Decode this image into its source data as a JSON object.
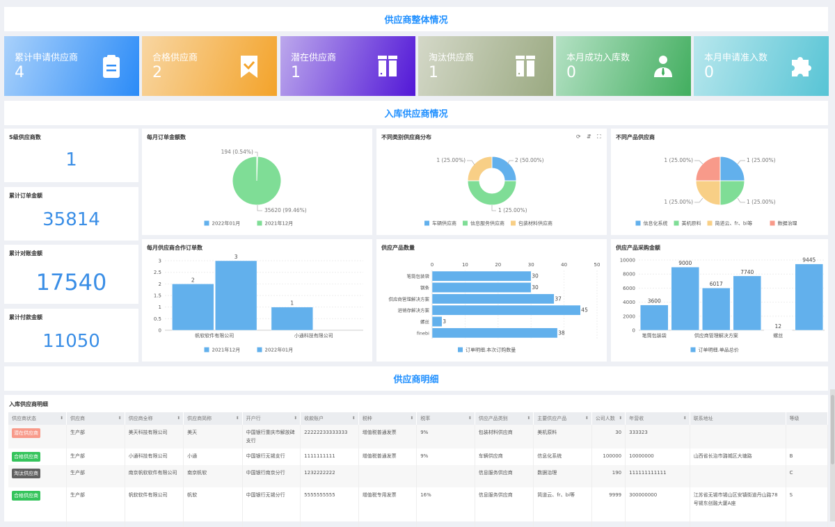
{
  "sections": {
    "overview": "供应商整体情况",
    "inbound": "入库供应商情况",
    "detail": "供应商明细"
  },
  "cards": [
    {
      "label": "累计申请供应商",
      "value": "4",
      "icon": "clipboard-icon",
      "from": "#a9d1fb",
      "to": "#2b8bf7"
    },
    {
      "label": "合格供应商",
      "value": "2",
      "icon": "bookmark-check-icon",
      "from": "#f8d6a2",
      "to": "#f3a32a"
    },
    {
      "label": "潜在供应商",
      "value": "1",
      "icon": "columns-icon",
      "from": "#bca8ec",
      "to": "#5217d7"
    },
    {
      "label": "淘汰供应商",
      "value": "1",
      "icon": "columns-icon",
      "from": "#d4d8c8",
      "to": "#9aa981"
    },
    {
      "label": "本月成功入库数",
      "value": "0",
      "icon": "user-tie-icon",
      "from": "#b4e1c4",
      "to": "#42ae5f"
    },
    {
      "label": "本月申请准入数",
      "value": "0",
      "icon": "puzzle-icon",
      "from": "#b8e7ed",
      "to": "#57c4d5"
    }
  ],
  "kpis": [
    {
      "label": "S级供应商数",
      "value": "1"
    },
    {
      "label": "累计订单金额",
      "value": "35814"
    },
    {
      "label": "累计对账金额",
      "value": "17540"
    },
    {
      "label": "累计付款金额",
      "value": "11050"
    }
  ],
  "chart_data": [
    {
      "id": "monthly-amount",
      "type": "pie",
      "title": "每月订单金额数",
      "categories": [
        "2022年01月",
        "2021年12月"
      ],
      "values": [
        194,
        35620
      ],
      "labels": [
        "194 (0.54%)",
        "35620 (99.46%)"
      ],
      "colors": [
        "#62b0ec",
        "#7fdd96"
      ],
      "legend": "bottom"
    },
    {
      "id": "category-dist",
      "type": "pie",
      "donut": true,
      "title": "不同类别供应商分布",
      "categories": [
        "车辆供应商",
        "信息服务供应商",
        "包装材料供应商"
      ],
      "values": [
        1,
        2,
        1
      ],
      "labels": [
        "1 (25.00%)",
        "2 (50.00%)",
        "1 (25.00%)"
      ],
      "colors": [
        "#62b0ec",
        "#7fdd96",
        "#f8cf86"
      ],
      "legend": "bottom",
      "toolbar": [
        "refresh-icon",
        "sort-icon",
        "fullscreen-icon"
      ]
    },
    {
      "id": "product-suppliers",
      "type": "pie",
      "title": "不同产品供应商",
      "categories": [
        "信息化系统",
        "美机原料",
        "简道云、fr、bi等",
        "数据治理"
      ],
      "values": [
        1,
        1,
        1,
        1
      ],
      "labels": [
        "1 (25.00%)",
        "1 (25.00%)",
        "1 (25.00%)",
        "1 (25.00%)"
      ],
      "colors": [
        "#62b0ec",
        "#7fdd96",
        "#f8cf86",
        "#f89a8a"
      ],
      "legend": "bottom"
    },
    {
      "id": "monthly-orders",
      "type": "bar",
      "title": "每月供应商合作订单数",
      "categories": [
        "帆软软件有限公司",
        "小通科技有限公司"
      ],
      "series": [
        {
          "name": "2021年12月",
          "values": [
            2,
            1
          ]
        },
        {
          "name": "2022年01月",
          "values": [
            3,
            0
          ]
        }
      ],
      "ylim": [
        0,
        3
      ],
      "yticks": [
        "0",
        "0.5",
        "1",
        "1.5",
        "2",
        "2.5",
        "3"
      ],
      "grid": true,
      "legend": "bottom",
      "color": "#62b0ec"
    },
    {
      "id": "product-qty",
      "type": "bar",
      "orientation": "horizontal",
      "title": "供应产品数量",
      "categories": [
        "笔筒包装袋",
        "钢条",
        "供应商管理解决方案",
        "进销存解决方案",
        "螺丝",
        "finebi"
      ],
      "series": [
        {
          "name": "订单明细.本次订购数量",
          "values": [
            30,
            30,
            37,
            45,
            3,
            38
          ]
        }
      ],
      "xlim": [
        0,
        50
      ],
      "xticks": [
        "0",
        "10",
        "20",
        "30",
        "40",
        "50"
      ],
      "grid": true,
      "legend": "bottom",
      "color": "#62b0ec"
    },
    {
      "id": "product-amount",
      "type": "bar",
      "title": "供应产品采购金额",
      "categories": [
        "笔筒包装袋",
        "",
        "供应商管理解决方案",
        "",
        "螺丝",
        ""
      ],
      "series": [
        {
          "name": "订单明细.单品总价",
          "values": [
            3600,
            9000,
            6017,
            7740,
            12,
            9445
          ]
        }
      ],
      "ylim": [
        0,
        10000
      ],
      "yticks": [
        "0",
        "2000",
        "4000",
        "6000",
        "8000",
        "10000"
      ],
      "grid": true,
      "legend": "bottom",
      "color": "#62b0ec"
    }
  ],
  "table": {
    "title": "入库供应商明细",
    "columns": [
      "供应商状态",
      "供应商",
      "供应商全称",
      "供应商简称",
      "开户行",
      "收款账户",
      "税种",
      "税率",
      "供应产品类别",
      "主要供应产品",
      "公司人数",
      "年营收",
      "联系地址",
      "等级"
    ],
    "rows": [
      {
        "status": "潜在供应商",
        "status_color": "#f89a8a",
        "cells": [
          "生产部",
          "美天科技有限公司",
          "美天",
          "中国银行重庆市解放碑支行",
          "22222233333333",
          "增值税普通发票",
          "9%",
          "包装材料供应商",
          "美机原料",
          "30",
          "333323",
          "",
          ""
        ]
      },
      {
        "status": "合格供应商",
        "status_color": "#35c45c",
        "cells": [
          "生产部",
          "小通科技有限公司",
          "小通",
          "中国银行无锡支行",
          "1111111111",
          "增值税普通发票",
          "9%",
          "车辆供应商",
          "信息化系统",
          "100000",
          "10000000",
          "山西省长治市潞城区大塘路",
          "B"
        ]
      },
      {
        "status": "淘汰供应商",
        "status_color": "#606060",
        "cells": [
          "生产部",
          "南京帆软软件有限公司",
          "南京帆软",
          "中国银行南京分行",
          "1232222222",
          "",
          "",
          "信息服务供应商",
          "数据治理",
          "190",
          "111111111111",
          "",
          "C"
        ]
      },
      {
        "status": "合格供应商",
        "status_color": "#35c45c",
        "cells": [
          "生产部",
          "帆软软件有限公司",
          "帆软",
          "中国银行无锡分行",
          "5555555555",
          "增值税专用发票",
          "16%",
          "信息服务供应商",
          "简道云、fr、bi等",
          "9999",
          "300000000",
          "江苏省无锡市锡山区安镇街道丹山路78号锡东创融大厦A座",
          "S"
        ]
      }
    ]
  }
}
